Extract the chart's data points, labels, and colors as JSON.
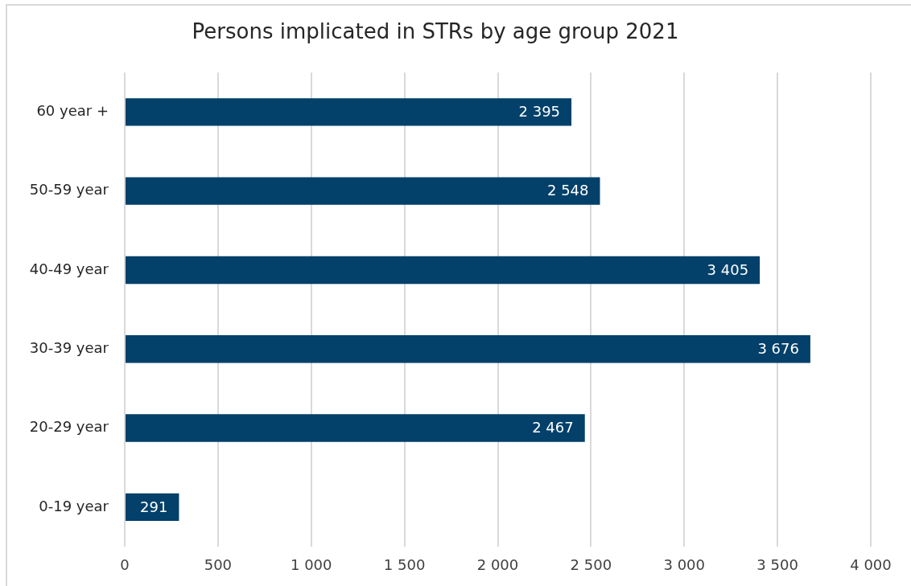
{
  "chart_data": {
    "type": "bar",
    "orientation": "horizontal",
    "title": "Persons implicated in STRs by age group 2021",
    "categories": [
      "60 year +",
      "50-59 year",
      "40-49 year",
      "30-39 year",
      "20-29 year",
      "0-19 year"
    ],
    "values": [
      2395,
      2548,
      3405,
      3676,
      2467,
      291
    ],
    "value_labels": [
      "2 395",
      "2 548",
      "3 405",
      "3 676",
      "2 467",
      "291"
    ],
    "color": "#03406a",
    "xlim": [
      0,
      4000
    ],
    "xticks": [
      0,
      500,
      {
        "value": 1000,
        "label": "1 000"
      },
      {
        "value": 1500,
        "label": "1 500"
      },
      {
        "value": 2000,
        "label": "2 000"
      },
      {
        "value": 2500,
        "label": "2 500"
      },
      {
        "value": 3000,
        "label": "3 000"
      },
      {
        "value": 3500,
        "label": "3 500"
      },
      {
        "value": 4000,
        "label": "4 000"
      }
    ],
    "grid": "x"
  }
}
